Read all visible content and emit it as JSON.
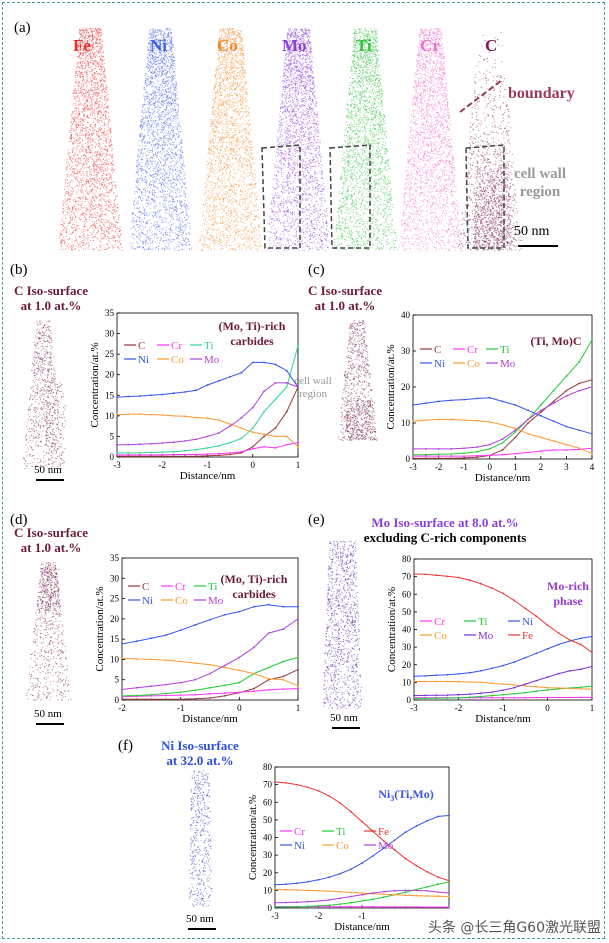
{
  "panel_labels": {
    "a": "(a)",
    "b": "(b)",
    "c": "(c)",
    "d": "(d)",
    "e": "(e)",
    "f": "(f)"
  },
  "panel_a": {
    "elements": [
      {
        "label": "Fe",
        "color": "#e83030"
      },
      {
        "label": "Ni",
        "color": "#3f5fe0"
      },
      {
        "label": "Co",
        "color": "#f08a30"
      },
      {
        "label": "Mo",
        "color": "#8a3fd6"
      },
      {
        "label": "Ti",
        "color": "#34c040"
      },
      {
        "label": "Cr",
        "color": "#f070c8"
      },
      {
        "label": "C",
        "color": "#7a2050"
      }
    ],
    "boundary_label": "boundary",
    "cell_wall_label_1": "cell wall",
    "cell_wall_label_2": "region",
    "scale_bar": "50 nm"
  },
  "panel_b": {
    "iso_1": "C Iso-surface",
    "iso_2": "at 1.0 at.%",
    "scale_bar": "50 nm"
  },
  "panel_c": {
    "iso_1": "C Iso-surface",
    "iso_2": "at 1.0 at.%",
    "cell_wall_1": "cell wall",
    "cell_wall_2": "region"
  },
  "panel_d": {
    "iso_1": "C Iso-surface",
    "iso_2": "at 1.0 at.%",
    "scale_bar": "50 nm"
  },
  "panel_e": {
    "iso_1": "Mo Iso-surface at 8.0 at.%",
    "iso_2": "excluding C-rich components",
    "scale_bar": "50 nm"
  },
  "panel_f": {
    "iso_1": "Ni Iso-surface",
    "iso_2": "at 32.0 at.%",
    "scale_bar": "50 nm"
  },
  "watermark": "头条 @长三角G60激光联盟",
  "chart_data": [
    {
      "panel": "b",
      "type": "line",
      "xlabel": "Distance/nm",
      "ylabel": "Concentration/at.%",
      "xlim": [
        -3,
        1
      ],
      "ylim": [
        0,
        35
      ],
      "xticks": [
        -3,
        -2,
        -1,
        0,
        1
      ],
      "yticks": [
        0,
        5,
        10,
        15,
        20,
        25,
        30,
        35
      ],
      "annotation": [
        "(Mo, Ti)-rich",
        "carbides"
      ],
      "annotation_color": "#6b1a3a",
      "legend": "top-left",
      "grid": false,
      "x": [
        -3,
        -2.75,
        -2.5,
        -2.25,
        -2,
        -1.75,
        -1.5,
        -1.25,
        -1,
        -0.75,
        -0.5,
        -0.25,
        0,
        0.25,
        0.5,
        0.75,
        1
      ],
      "series": [
        {
          "name": "C",
          "color": "#9a3a3a",
          "values": [
            0.2,
            0.2,
            0.2,
            0.2,
            0.2,
            0.2,
            0.2,
            0.2,
            0.3,
            0.4,
            0.6,
            1,
            2.5,
            5,
            7,
            11,
            17
          ]
        },
        {
          "name": "Cr",
          "color": "#ff33ff",
          "values": [
            0.5,
            0.5,
            0.5,
            0.5,
            0.5,
            0.6,
            0.6,
            0.6,
            0.7,
            0.8,
            1,
            1.3,
            2,
            2.5,
            2.2,
            3,
            3.5
          ]
        },
        {
          "name": "Ti",
          "color": "#2ed68f",
          "values": [
            1,
            1,
            1,
            1.1,
            1.2,
            1.3,
            1.5,
            1.8,
            2.2,
            2.7,
            3.5,
            4.5,
            7,
            11,
            14,
            17,
            27
          ]
        },
        {
          "name": "Ni",
          "color": "#3355ee",
          "values": [
            14.5,
            14.7,
            14.8,
            15,
            15.2,
            15.5,
            15.8,
            16.2,
            17.5,
            18.5,
            19.5,
            20.5,
            23,
            23,
            22.5,
            21,
            17
          ]
        },
        {
          "name": "Co",
          "color": "#ff9933",
          "values": [
            10.3,
            10.4,
            10.4,
            10.3,
            10.2,
            10,
            9.9,
            9.6,
            9.4,
            9,
            8,
            7,
            6,
            5.5,
            5,
            5,
            2.5
          ]
        },
        {
          "name": "Mo",
          "color": "#b040dd",
          "values": [
            3,
            3,
            3.1,
            3.2,
            3.4,
            3.6,
            3.9,
            4.3,
            5,
            5.8,
            7.5,
            9.5,
            12,
            16,
            18,
            18,
            17
          ]
        }
      ]
    },
    {
      "panel": "c",
      "type": "line",
      "xlabel": "Distance/nm",
      "ylabel": "Concentration/at.%",
      "xlim": [
        -3,
        4
      ],
      "ylim": [
        0,
        40
      ],
      "xticks": [
        -3,
        -2,
        -1,
        0,
        1,
        2,
        3,
        4
      ],
      "yticks": [
        0,
        10,
        20,
        30,
        40
      ],
      "annotation": [
        "(Ti, Mo)C"
      ],
      "annotation_color": "#6b1a3a",
      "legend": "top-left",
      "grid": false,
      "x": [
        -3,
        -2.5,
        -2,
        -1.5,
        -1,
        -0.5,
        0,
        0.5,
        1,
        1.5,
        2,
        2.5,
        3,
        3.5,
        4
      ],
      "series": [
        {
          "name": "C",
          "color": "#9a3a3a",
          "values": [
            0.2,
            0.2,
            0.2,
            0.2,
            0.3,
            0.5,
            1,
            2.5,
            6,
            10,
            13,
            16,
            19,
            21,
            22
          ]
        },
        {
          "name": "Cr",
          "color": "#ff33ff",
          "values": [
            0.8,
            0.8,
            0.8,
            0.8,
            0.8,
            0.9,
            1,
            1.2,
            1.5,
            1.8,
            2.2,
            2.5,
            2.5,
            2.7,
            3
          ]
        },
        {
          "name": "Ti",
          "color": "#22cc33",
          "values": [
            1.2,
            1.2,
            1.3,
            1.4,
            1.6,
            2,
            2.8,
            4.5,
            7.5,
            11,
            15,
            19,
            23,
            27,
            33
          ]
        },
        {
          "name": "Ni",
          "color": "#3355ee",
          "values": [
            15,
            15.5,
            16,
            16.3,
            16.5,
            16.8,
            17,
            16,
            15,
            13.5,
            12,
            10.5,
            9,
            8,
            7
          ]
        },
        {
          "name": "Co",
          "color": "#ff9933",
          "values": [
            10.5,
            10.8,
            11,
            11,
            10.8,
            10.6,
            10.3,
            9.5,
            8.5,
            7,
            6,
            5,
            4,
            3,
            1.5
          ]
        },
        {
          "name": "Mo",
          "color": "#b040dd",
          "values": [
            2.8,
            2.8,
            2.8,
            2.8,
            3,
            3.3,
            4,
            5.5,
            8,
            11,
            13.5,
            15.5,
            17.5,
            19,
            20
          ]
        }
      ]
    },
    {
      "panel": "d",
      "type": "line",
      "xlabel": "Distance/nm",
      "ylabel": "Concentration/at.%",
      "xlim": [
        -2,
        1
      ],
      "ylim": [
        0,
        35
      ],
      "xticks": [
        -2,
        -1,
        0,
        1
      ],
      "yticks": [
        0,
        5,
        10,
        15,
        20,
        25,
        30,
        35
      ],
      "annotation": [
        "(Mo, Ti)-rich",
        "carbides"
      ],
      "annotation_color": "#6b1a3a",
      "legend": "top-left",
      "grid": false,
      "x": [
        -2,
        -1.75,
        -1.5,
        -1.25,
        -1,
        -0.75,
        -0.5,
        -0.25,
        0,
        0.25,
        0.5,
        0.75,
        1
      ],
      "series": [
        {
          "name": "C",
          "color": "#9a3a3a",
          "values": [
            0.2,
            0.2,
            0.2,
            0.2,
            0.2,
            0.3,
            0.5,
            1,
            1.8,
            2.8,
            5,
            5.8,
            7.5
          ]
        },
        {
          "name": "Cr",
          "color": "#ff33ff",
          "values": [
            0.8,
            0.9,
            1,
            1.1,
            1.2,
            1.3,
            1.5,
            1.7,
            1.9,
            2.2,
            2.5,
            2.7,
            2.8
          ]
        },
        {
          "name": "Ti",
          "color": "#22cc33",
          "values": [
            1,
            1.1,
            1.3,
            1.6,
            1.9,
            2.4,
            3,
            3.6,
            4.3,
            6.5,
            8,
            9.5,
            10.5
          ]
        },
        {
          "name": "Ni",
          "color": "#3355ee",
          "values": [
            13.8,
            14.5,
            15.2,
            16,
            17.2,
            18.5,
            19.8,
            21,
            21.8,
            23,
            23.5,
            23,
            23
          ]
        },
        {
          "name": "Co",
          "color": "#ff9933",
          "values": [
            10.3,
            10.1,
            10,
            9.8,
            9.5,
            9.1,
            8.7,
            8,
            7.3,
            6.5,
            5.2,
            5,
            3.5
          ]
        },
        {
          "name": "Mo",
          "color": "#b040dd",
          "values": [
            2.6,
            3,
            3.4,
            3.8,
            4.3,
            5,
            6.5,
            8.5,
            10.5,
            13,
            16.5,
            17.5,
            20
          ]
        }
      ]
    },
    {
      "panel": "e",
      "type": "line",
      "xlabel": "Distance/nm",
      "ylabel": "Concentration/at.%",
      "xlim": [
        -3,
        1
      ],
      "ylim": [
        0,
        80
      ],
      "xticks": [
        -3,
        -2,
        -1,
        0,
        1
      ],
      "yticks": [
        0,
        10,
        20,
        30,
        40,
        50,
        60,
        70,
        80
      ],
      "annotation": [
        "Mo-rich",
        "phase"
      ],
      "annotation_color": "#9a3ad6",
      "legend": "middle-left",
      "grid": false,
      "x": [
        -3,
        -2.75,
        -2.5,
        -2.25,
        -2,
        -1.75,
        -1.5,
        -1.25,
        -1,
        -0.75,
        -0.5,
        -0.25,
        0,
        0.25,
        0.5,
        0.75,
        1
      ],
      "series": [
        {
          "name": "Cr",
          "color": "#ff33ff",
          "values": [
            1.3,
            1.3,
            1.3,
            1.3,
            1.3,
            1.3,
            1.3,
            1.3,
            1.3,
            1.3,
            1.3,
            1.4,
            1.4,
            1.4,
            1.4,
            1.5,
            1.5
          ]
        },
        {
          "name": "Ti",
          "color": "#22cc33",
          "values": [
            0.8,
            0.9,
            1,
            1.1,
            1.3,
            1.6,
            2,
            2.5,
            3,
            3.6,
            4.2,
            5,
            5.7,
            6.3,
            6.8,
            7.2,
            7.8
          ]
        },
        {
          "name": "Ni",
          "color": "#3355ee",
          "values": [
            13.5,
            13.7,
            14,
            14.3,
            14.8,
            15.5,
            16.5,
            18,
            19.5,
            21.5,
            24,
            26.5,
            29,
            31.5,
            33.5,
            35,
            36
          ]
        },
        {
          "name": "Co",
          "color": "#ff9933",
          "values": [
            10.5,
            10.5,
            10.5,
            10.5,
            10.4,
            10.2,
            10,
            9.5,
            9,
            8.5,
            8,
            7.5,
            7,
            6.8,
            6.6,
            6.3,
            6
          ]
        },
        {
          "name": "Mo",
          "color": "#7a30d6",
          "values": [
            2.5,
            2.6,
            2.7,
            2.8,
            3,
            3.3,
            3.8,
            4.5,
            5.5,
            7,
            9,
            11,
            13,
            15,
            16.5,
            17.5,
            19
          ]
        },
        {
          "name": "Fe",
          "color": "#ee3333",
          "values": [
            71.5,
            71.3,
            70.8,
            70.2,
            69.5,
            68,
            66,
            63.5,
            60.5,
            56.5,
            52,
            47.5,
            42.5,
            38,
            34,
            31.5,
            27
          ]
        }
      ]
    },
    {
      "panel": "f",
      "type": "line",
      "xlabel": "Distance/nm",
      "ylabel": "Concentration/at.%",
      "xlim": [
        -3,
        1
      ],
      "ylim": [
        0,
        80
      ],
      "xticks": [
        -3,
        -2,
        -1
      ],
      "yticks": [
        0,
        10,
        20,
        30,
        40,
        50,
        60,
        70,
        80
      ],
      "annotation": [
        "Ni",
        "3",
        "(Ti,Mo)"
      ],
      "annotation_color": "#3a55e0",
      "legend": "middle-left",
      "grid": false,
      "x": [
        -3,
        -2.75,
        -2.5,
        -2.25,
        -2,
        -1.75,
        -1.5,
        -1.25,
        -1,
        -0.75,
        -0.5,
        -0.25,
        0,
        0.25,
        0.5,
        0.75,
        1
      ],
      "series": [
        {
          "name": "Cr",
          "color": "#ff33ff",
          "values": [
            0.8,
            0.8,
            0.8,
            0.8,
            0.8,
            0.8,
            0.7,
            0.7,
            0.7,
            0.7,
            0.6,
            0.6,
            0.6,
            0.6,
            0.5,
            0.5,
            0.5
          ]
        },
        {
          "name": "Ti",
          "color": "#22cc33",
          "values": [
            0.5,
            0.6,
            0.7,
            0.9,
            1.2,
            1.6,
            2.2,
            3,
            4,
            5,
            6.2,
            7.5,
            9,
            10.5,
            12,
            13.5,
            14.8
          ]
        },
        {
          "name": "Fe",
          "color": "#ee3333",
          "values": [
            71.5,
            71,
            70,
            68.5,
            66.5,
            63.5,
            59.5,
            54.5,
            49,
            43.5,
            38,
            33,
            28,
            24,
            20.5,
            17.5,
            15.5
          ]
        },
        {
          "name": "Ni",
          "color": "#3355ee",
          "values": [
            13.2,
            13.5,
            14,
            14.8,
            16,
            17.5,
            19.5,
            22,
            25.5,
            29.5,
            34,
            38.5,
            43,
            46.5,
            49.5,
            52,
            52.5
          ]
        },
        {
          "name": "Co",
          "color": "#ff9933",
          "values": [
            10.5,
            10.4,
            10.2,
            10,
            9.8,
            9.5,
            9.2,
            8.8,
            8.5,
            8.1,
            7.8,
            7.5,
            7.2,
            7,
            6.8,
            6.7,
            6.5
          ]
        },
        {
          "name": "Mo",
          "color": "#b040dd",
          "values": [
            3,
            3.1,
            3.3,
            3.6,
            4,
            4.6,
            5.5,
            6.5,
            7.5,
            8.5,
            9.3,
            9.8,
            10,
            10,
            9.7,
            9,
            8.5
          ]
        }
      ]
    }
  ]
}
